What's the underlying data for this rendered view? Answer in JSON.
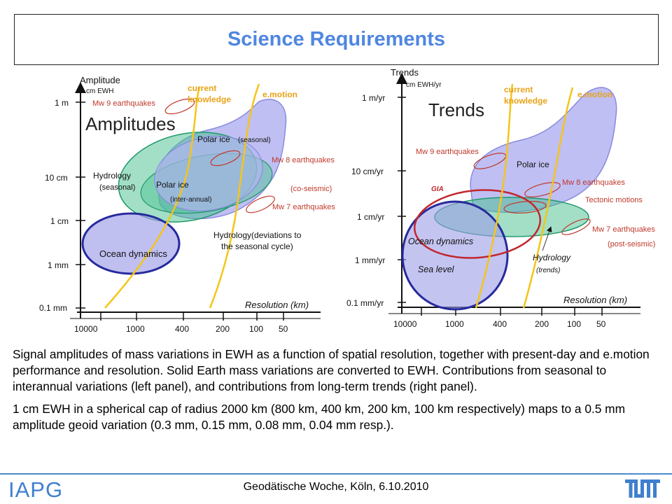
{
  "title": "Science Requirements",
  "left_panel": {
    "panel_title": "Amplitudes",
    "y_axis_title": "Amplitude",
    "y_axis_unit": "cm EWH",
    "y_ticks": [
      "1 m",
      "10 cm",
      "1 cm",
      "1 mm",
      "0.1 mm"
    ],
    "x_ticks": [
      "10000",
      "1000",
      "400",
      "200",
      "100",
      "50"
    ],
    "x_axis_title": "Resolution (km)",
    "curve_current": "current knowledge",
    "curve_emotion": "e.motion",
    "labels": {
      "mw9": "Mw 9 earthquakes",
      "mw8": "Mw 8 earthquakes",
      "coseismic": "(co-seismic)",
      "mw7": "Mw 7 earthquakes",
      "polar_seasonal_a": "Polar ice",
      "polar_seasonal_b": "(seasonal)",
      "polar_ia_a": "Polar ice",
      "polar_ia_b": "(inter-annual)",
      "hydro_seasonal_a": "Hydrology",
      "hydro_seasonal_b": "(seasonal)",
      "hydro_dev_a": "Hydrology(deviations to",
      "hydro_dev_b": "the seasonal cycle)",
      "ocean": "Ocean dynamics"
    }
  },
  "right_panel": {
    "panel_title": "Trends",
    "y_axis_title": "Trends",
    "y_axis_unit": "cm EWH/yr",
    "y_ticks": [
      "1 m/yr",
      "10 cm/yr",
      "1 cm/yr",
      "1 mm/yr",
      "0.1 mm/yr"
    ],
    "x_ticks": [
      "10000",
      "1000",
      "400",
      "200",
      "100",
      "50"
    ],
    "x_axis_title": "Resolution (km)",
    "curve_current": "current knowledge",
    "curve_emotion": "e.motion",
    "labels": {
      "mw9": "Mw 9 earthquakes",
      "polar": "Polar ice",
      "gia": "GIA",
      "mw8": "Mw 8 earthquakes",
      "tectonic": "Tectonic motions",
      "mw7": "Mw 7 earthquakes",
      "postseismic": "(post-seismic)",
      "ocean": "Ocean dynamics",
      "sealevel": "Sea level",
      "hydro_a": "Hydrology",
      "hydro_b": "(trends)"
    }
  },
  "caption": {
    "p1": "Signal amplitudes of mass variations in EWH as a function of spatial resolution, together with present-day and e.motion performance and resolution. Solid Earth mass variations are converted to EWH. Contributions from seasonal to interannual variations (left panel), and contributions from long-term trends (right panel).",
    "p2": "1 cm EWH in a spherical cap of radius 2000 km (800 km, 400 km, 200 km, 100 km respectively) maps to a 0.5 mm amplitude geoid variation (0.3 mm, 0.15 mm, 0.08 mm, 0.04 mm resp.)."
  },
  "footer": {
    "logo": "IAPG",
    "text": "Geodätische Woche, Köln, 6.10.2010",
    "right_logo": "tum-logo"
  },
  "colors": {
    "title": "#4f86e0",
    "curve": "#f5c518",
    "curve_label": "#e8a317",
    "earthquake": "#c0392b",
    "polar_fill": "#a9a9ef",
    "green_fill": "#46c08e",
    "ocean_stroke": "#262a9c",
    "footer_blue": "#3f7fcf"
  }
}
